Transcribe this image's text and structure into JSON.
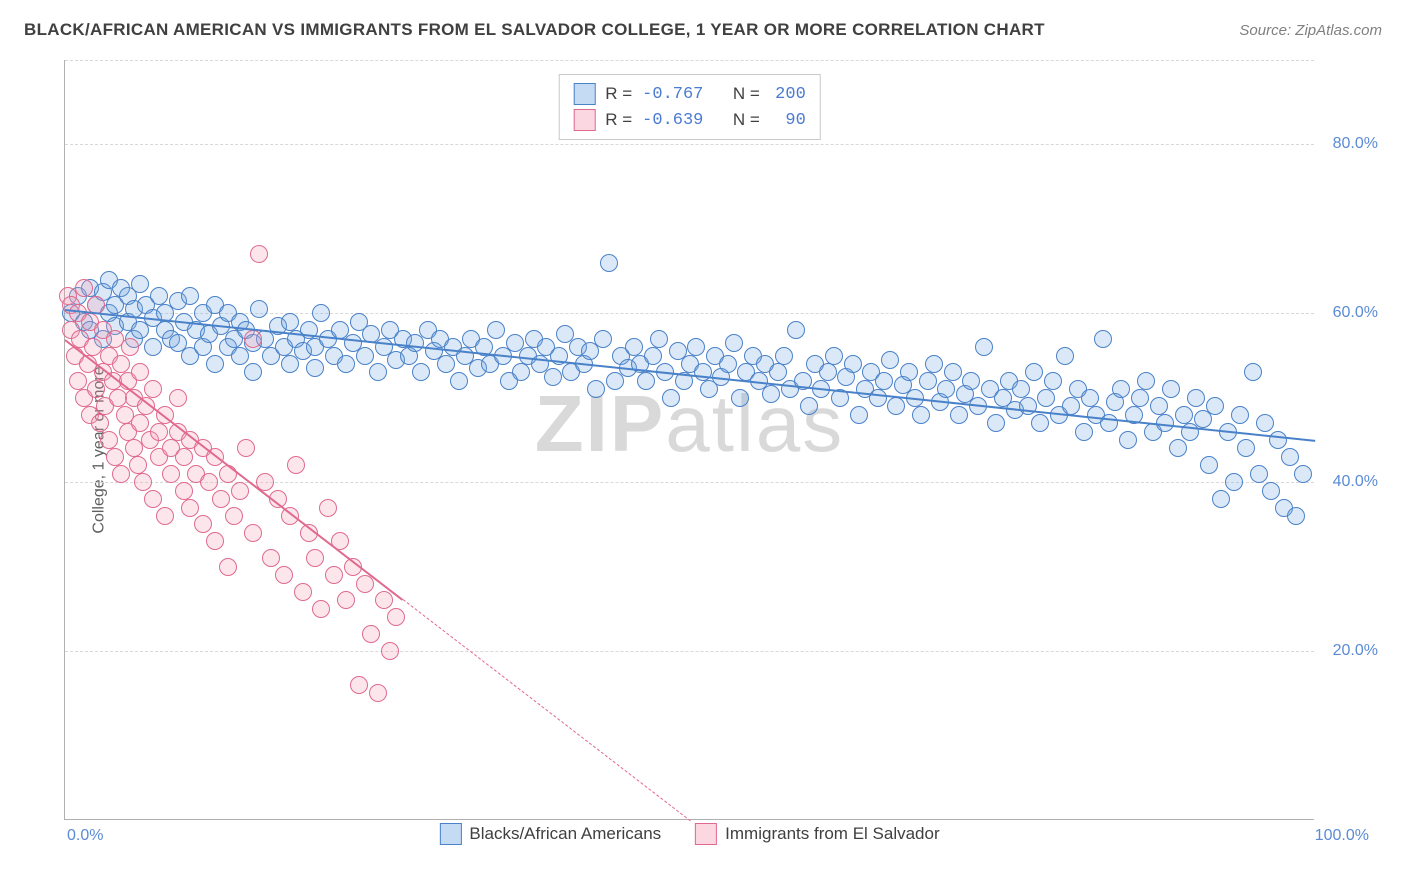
{
  "title": "BLACK/AFRICAN AMERICAN VS IMMIGRANTS FROM EL SALVADOR COLLEGE, 1 YEAR OR MORE CORRELATION CHART",
  "source_label": "Source:",
  "source_value": "ZipAtlas.com",
  "ylabel": "College, 1 year or more",
  "watermark": {
    "part1": "ZIP",
    "part2": "atlas"
  },
  "chart": {
    "type": "scatter",
    "background_color": "#ffffff",
    "grid_color": "#d8d8d8",
    "axis_color": "#b0b0b0",
    "tick_text_color": "#5b8bd4",
    "xlim": [
      0,
      100
    ],
    "ylim": [
      0,
      90
    ],
    "xticks": [
      {
        "value": 0,
        "label": "0.0%",
        "side": "left"
      },
      {
        "value": 100,
        "label": "100.0%",
        "side": "right"
      }
    ],
    "yticks": [
      {
        "value": 20,
        "label": "20.0%"
      },
      {
        "value": 40,
        "label": "40.0%"
      },
      {
        "value": 60,
        "label": "60.0%"
      },
      {
        "value": 80,
        "label": "80.0%"
      }
    ],
    "ygrid_extra": [
      90
    ],
    "marker_radius": 9,
    "marker_border_width": 1.2,
    "marker_fill_opacity": 0.25,
    "series": [
      {
        "id": "blue",
        "label": "Blacks/African Americans",
        "color": "#6fa3e0",
        "stroke": "#4a82c9",
        "r_value": "-0.767",
        "n_value": "200",
        "trend": {
          "x1": 0,
          "y1": 60.5,
          "x2": 100,
          "y2": 45.0,
          "segments": [
            {
              "x1": 0,
              "x2": 100,
              "style": "solid",
              "width": 2.6
            }
          ]
        },
        "points": [
          [
            0.5,
            60
          ],
          [
            1,
            62
          ],
          [
            1.5,
            59
          ],
          [
            2,
            63
          ],
          [
            2,
            58
          ],
          [
            2.5,
            61
          ],
          [
            3,
            62.5
          ],
          [
            3,
            57
          ],
          [
            3.5,
            60
          ],
          [
            3.5,
            64
          ],
          [
            4,
            58.5
          ],
          [
            4,
            61
          ],
          [
            4.5,
            63
          ],
          [
            5,
            59
          ],
          [
            5,
            62
          ],
          [
            5.5,
            57
          ],
          [
            5.5,
            60.5
          ],
          [
            6,
            63.5
          ],
          [
            6,
            58
          ],
          [
            6.5,
            61
          ],
          [
            7,
            56
          ],
          [
            7,
            59.5
          ],
          [
            7.5,
            62
          ],
          [
            8,
            58
          ],
          [
            8,
            60
          ],
          [
            8.5,
            57
          ],
          [
            9,
            61.5
          ],
          [
            9,
            56.5
          ],
          [
            9.5,
            59
          ],
          [
            10,
            62
          ],
          [
            10,
            55
          ],
          [
            10.5,
            58
          ],
          [
            11,
            60
          ],
          [
            11,
            56
          ],
          [
            11.5,
            57.5
          ],
          [
            12,
            61
          ],
          [
            12,
            54
          ],
          [
            12.5,
            58.5
          ],
          [
            13,
            56
          ],
          [
            13,
            60
          ],
          [
            13.5,
            57
          ],
          [
            14,
            55
          ],
          [
            14,
            59
          ],
          [
            14.5,
            58
          ],
          [
            15,
            56.5
          ],
          [
            15,
            53
          ],
          [
            15.5,
            60.5
          ],
          [
            16,
            57
          ],
          [
            16.5,
            55
          ],
          [
            17,
            58.5
          ],
          [
            17.5,
            56
          ],
          [
            18,
            54
          ],
          [
            18,
            59
          ],
          [
            18.5,
            57
          ],
          [
            19,
            55.5
          ],
          [
            19.5,
            58
          ],
          [
            20,
            56
          ],
          [
            20,
            53.5
          ],
          [
            20.5,
            60
          ],
          [
            21,
            57
          ],
          [
            21.5,
            55
          ],
          [
            22,
            58
          ],
          [
            22.5,
            54
          ],
          [
            23,
            56.5
          ],
          [
            23.5,
            59
          ],
          [
            24,
            55
          ],
          [
            24.5,
            57.5
          ],
          [
            25,
            53
          ],
          [
            25.5,
            56
          ],
          [
            26,
            58
          ],
          [
            26.5,
            54.5
          ],
          [
            27,
            57
          ],
          [
            27.5,
            55
          ],
          [
            28,
            56.5
          ],
          [
            28.5,
            53
          ],
          [
            29,
            58
          ],
          [
            29.5,
            55.5
          ],
          [
            30,
            57
          ],
          [
            30.5,
            54
          ],
          [
            31,
            56
          ],
          [
            31.5,
            52
          ],
          [
            32,
            55
          ],
          [
            32.5,
            57
          ],
          [
            33,
            53.5
          ],
          [
            33.5,
            56
          ],
          [
            34,
            54
          ],
          [
            34.5,
            58
          ],
          [
            35,
            55
          ],
          [
            35.5,
            52
          ],
          [
            36,
            56.5
          ],
          [
            36.5,
            53
          ],
          [
            37,
            55
          ],
          [
            37.5,
            57
          ],
          [
            38,
            54
          ],
          [
            38.5,
            56
          ],
          [
            39,
            52.5
          ],
          [
            39.5,
            55
          ],
          [
            40,
            57.5
          ],
          [
            40.5,
            53
          ],
          [
            41,
            56
          ],
          [
            41.5,
            54
          ],
          [
            42,
            55.5
          ],
          [
            42.5,
            51
          ],
          [
            43,
            57
          ],
          [
            43.5,
            66
          ],
          [
            44,
            52
          ],
          [
            44.5,
            55
          ],
          [
            45,
            53.5
          ],
          [
            45.5,
            56
          ],
          [
            46,
            54
          ],
          [
            46.5,
            52
          ],
          [
            47,
            55
          ],
          [
            47.5,
            57
          ],
          [
            48,
            53
          ],
          [
            48.5,
            50
          ],
          [
            49,
            55.5
          ],
          [
            49.5,
            52
          ],
          [
            50,
            54
          ],
          [
            50.5,
            56
          ],
          [
            51,
            53
          ],
          [
            51.5,
            51
          ],
          [
            52,
            55
          ],
          [
            52.5,
            52.5
          ],
          [
            53,
            54
          ],
          [
            53.5,
            56.5
          ],
          [
            54,
            50
          ],
          [
            54.5,
            53
          ],
          [
            55,
            55
          ],
          [
            55.5,
            52
          ],
          [
            56,
            54
          ],
          [
            56.5,
            50.5
          ],
          [
            57,
            53
          ],
          [
            57.5,
            55
          ],
          [
            58,
            51
          ],
          [
            58.5,
            58
          ],
          [
            59,
            52
          ],
          [
            59.5,
            49
          ],
          [
            60,
            54
          ],
          [
            60.5,
            51
          ],
          [
            61,
            53
          ],
          [
            61.5,
            55
          ],
          [
            62,
            50
          ],
          [
            62.5,
            52.5
          ],
          [
            63,
            54
          ],
          [
            63.5,
            48
          ],
          [
            64,
            51
          ],
          [
            64.5,
            53
          ],
          [
            65,
            50
          ],
          [
            65.5,
            52
          ],
          [
            66,
            54.5
          ],
          [
            66.5,
            49
          ],
          [
            67,
            51.5
          ],
          [
            67.5,
            53
          ],
          [
            68,
            50
          ],
          [
            68.5,
            48
          ],
          [
            69,
            52
          ],
          [
            69.5,
            54
          ],
          [
            70,
            49.5
          ],
          [
            70.5,
            51
          ],
          [
            71,
            53
          ],
          [
            71.5,
            48
          ],
          [
            72,
            50.5
          ],
          [
            72.5,
            52
          ],
          [
            73,
            49
          ],
          [
            73.5,
            56
          ],
          [
            74,
            51
          ],
          [
            74.5,
            47
          ],
          [
            75,
            50
          ],
          [
            75.5,
            52
          ],
          [
            76,
            48.5
          ],
          [
            76.5,
            51
          ],
          [
            77,
            49
          ],
          [
            77.5,
            53
          ],
          [
            78,
            47
          ],
          [
            78.5,
            50
          ],
          [
            79,
            52
          ],
          [
            79.5,
            48
          ],
          [
            80,
            55
          ],
          [
            80.5,
            49
          ],
          [
            81,
            51
          ],
          [
            81.5,
            46
          ],
          [
            82,
            50
          ],
          [
            82.5,
            48
          ],
          [
            83,
            57
          ],
          [
            83.5,
            47
          ],
          [
            84,
            49.5
          ],
          [
            84.5,
            51
          ],
          [
            85,
            45
          ],
          [
            85.5,
            48
          ],
          [
            86,
            50
          ],
          [
            86.5,
            52
          ],
          [
            87,
            46
          ],
          [
            87.5,
            49
          ],
          [
            88,
            47
          ],
          [
            88.5,
            51
          ],
          [
            89,
            44
          ],
          [
            89.5,
            48
          ],
          [
            90,
            46
          ],
          [
            90.5,
            50
          ],
          [
            91,
            47.5
          ],
          [
            91.5,
            42
          ],
          [
            92,
            49
          ],
          [
            92.5,
            38
          ],
          [
            93,
            46
          ],
          [
            93.5,
            40
          ],
          [
            94,
            48
          ],
          [
            94.5,
            44
          ],
          [
            95,
            53
          ],
          [
            95.5,
            41
          ],
          [
            96,
            47
          ],
          [
            96.5,
            39
          ],
          [
            97,
            45
          ],
          [
            97.5,
            37
          ],
          [
            98,
            43
          ],
          [
            98.5,
            36
          ],
          [
            99,
            41
          ]
        ]
      },
      {
        "id": "pink",
        "label": "Immigrants from El Salvador",
        "color": "#f29ab3",
        "stroke": "#e06a8f",
        "r_value": "-0.639",
        "n_value": "90",
        "trend": {
          "x1": 0,
          "y1": 57.0,
          "x2": 50,
          "y2": 0,
          "segments": [
            {
              "x1": 0,
              "x2": 27,
              "style": "solid",
              "width": 2.0
            },
            {
              "x1": 27,
              "x2": 50,
              "style": "dash",
              "width": 1.4
            }
          ]
        },
        "points": [
          [
            0.2,
            62
          ],
          [
            0.5,
            58
          ],
          [
            0.5,
            61
          ],
          [
            0.8,
            55
          ],
          [
            1,
            60
          ],
          [
            1,
            52
          ],
          [
            1.2,
            57
          ],
          [
            1.5,
            63
          ],
          [
            1.5,
            50
          ],
          [
            1.8,
            54
          ],
          [
            2,
            59
          ],
          [
            2,
            48
          ],
          [
            2.2,
            56
          ],
          [
            2.5,
            51
          ],
          [
            2.5,
            61
          ],
          [
            2.8,
            47
          ],
          [
            3,
            53
          ],
          [
            3,
            58
          ],
          [
            3.2,
            49
          ],
          [
            3.5,
            55
          ],
          [
            3.5,
            45
          ],
          [
            3.8,
            52
          ],
          [
            4,
            57
          ],
          [
            4,
            43
          ],
          [
            4.2,
            50
          ],
          [
            4.5,
            54
          ],
          [
            4.5,
            41
          ],
          [
            4.8,
            48
          ],
          [
            5,
            52
          ],
          [
            5,
            46
          ],
          [
            5.2,
            56
          ],
          [
            5.5,
            44
          ],
          [
            5.5,
            50
          ],
          [
            5.8,
            42
          ],
          [
            6,
            53
          ],
          [
            6,
            47
          ],
          [
            6.2,
            40
          ],
          [
            6.5,
            49
          ],
          [
            6.8,
            45
          ],
          [
            7,
            51
          ],
          [
            7,
            38
          ],
          [
            7.5,
            46
          ],
          [
            7.5,
            43
          ],
          [
            8,
            48
          ],
          [
            8,
            36
          ],
          [
            8.5,
            44
          ],
          [
            8.5,
            41
          ],
          [
            9,
            46
          ],
          [
            9,
            50
          ],
          [
            9.5,
            39
          ],
          [
            9.5,
            43
          ],
          [
            10,
            45
          ],
          [
            10,
            37
          ],
          [
            10.5,
            41
          ],
          [
            11,
            44
          ],
          [
            11,
            35
          ],
          [
            11.5,
            40
          ],
          [
            12,
            43
          ],
          [
            12,
            33
          ],
          [
            12.5,
            38
          ],
          [
            13,
            41
          ],
          [
            13,
            30
          ],
          [
            13.5,
            36
          ],
          [
            14,
            39
          ],
          [
            14.5,
            44
          ],
          [
            15,
            34
          ],
          [
            15,
            57
          ],
          [
            15.5,
            67
          ],
          [
            16,
            40
          ],
          [
            16.5,
            31
          ],
          [
            17,
            38
          ],
          [
            17.5,
            29
          ],
          [
            18,
            36
          ],
          [
            18.5,
            42
          ],
          [
            19,
            27
          ],
          [
            19.5,
            34
          ],
          [
            20,
            31
          ],
          [
            20.5,
            25
          ],
          [
            21,
            37
          ],
          [
            21.5,
            29
          ],
          [
            22,
            33
          ],
          [
            22.5,
            26
          ],
          [
            23,
            30
          ],
          [
            23.5,
            16
          ],
          [
            24,
            28
          ],
          [
            24.5,
            22
          ],
          [
            25,
            15
          ],
          [
            25.5,
            26
          ],
          [
            26,
            20
          ],
          [
            26.5,
            24
          ]
        ]
      }
    ],
    "legend_top": {
      "r_label": "R =",
      "n_label": "N ="
    },
    "bottom_legend_labels": [
      "Blacks/African Americans",
      "Immigrants from El Salvador"
    ]
  }
}
